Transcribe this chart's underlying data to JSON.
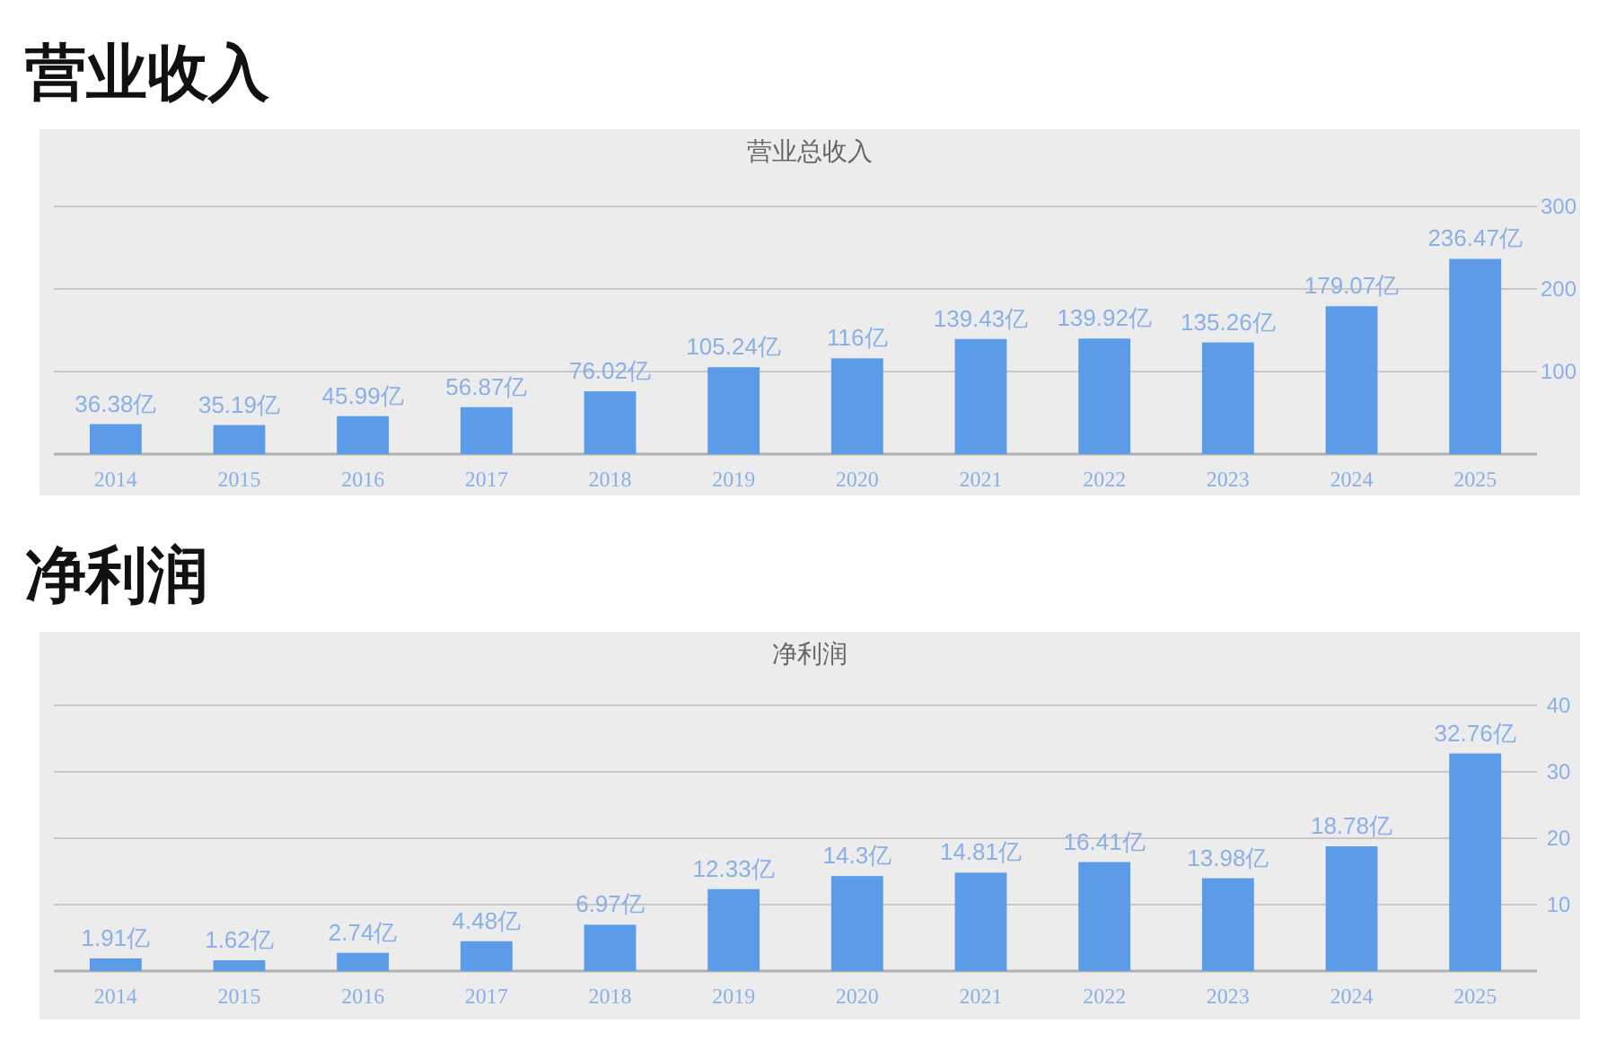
{
  "chart_data": [
    {
      "type": "bar",
      "title": "营业收入",
      "subtitle": "营业总收入",
      "categories": [
        "2014",
        "2015",
        "2016",
        "2017",
        "2018",
        "2019",
        "2020",
        "2021",
        "2022",
        "2023",
        "2024",
        "2025"
      ],
      "series": [
        {
          "color": "#5b9be8",
          "values": [
            36.38,
            35.19,
            45.99,
            56.87,
            76.02,
            105.24,
            116,
            139.43,
            139.92,
            135.26,
            179.07,
            236.47
          ],
          "value_labels": [
            "36.38亿",
            "35.19亿",
            "45.99亿",
            "56.87亿",
            "76.02亿",
            "105.24亿",
            "116亿",
            "139.43亿",
            "139.92亿",
            "135.26亿",
            "179.07亿",
            "236.47亿"
          ]
        }
      ],
      "ylim": [
        0,
        300
      ],
      "yticks": [
        100,
        200,
        300
      ],
      "grid": "y"
    },
    {
      "type": "bar",
      "title": "净利润",
      "subtitle": "净利润",
      "categories": [
        "2014",
        "2015",
        "2016",
        "2017",
        "2018",
        "2019",
        "2020",
        "2021",
        "2022",
        "2023",
        "2024",
        "2025"
      ],
      "series": [
        {
          "color": "#5b9be8",
          "values": [
            1.91,
            1.62,
            2.74,
            4.48,
            6.97,
            12.33,
            14.3,
            14.81,
            16.41,
            13.98,
            18.78,
            32.76
          ],
          "value_labels": [
            "1.91亿",
            "1.62亿",
            "2.74亿",
            "4.48亿",
            "6.97亿",
            "12.33亿",
            "14.3亿",
            "14.81亿",
            "16.41亿",
            "13.98亿",
            "18.78亿",
            "32.76亿"
          ]
        }
      ],
      "ylim": [
        0,
        40
      ],
      "yticks": [
        10,
        20,
        30,
        40
      ],
      "grid": "y"
    }
  ]
}
